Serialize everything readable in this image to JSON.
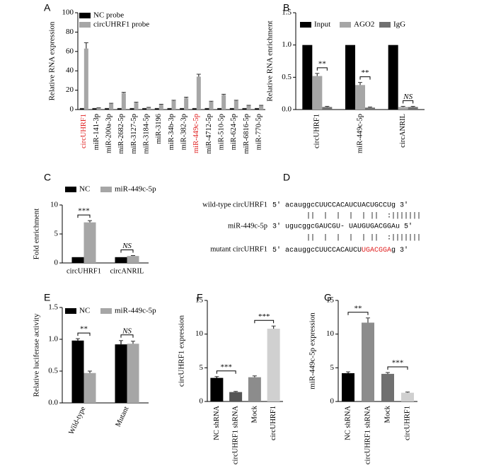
{
  "chart_data": [
    {
      "type": "bar",
      "panel": "A",
      "y_label": "Relative RNA expression",
      "categories": [
        "circUHRF1",
        "miR-141-3p",
        "miR-200a-3p",
        "miR-2682-5p",
        "miR-3127-5p",
        "miR-3184-5p",
        "miR-3196",
        "miR-34b-3p",
        "miR-382-3p",
        "miR-449c-5p",
        "miR-4712-5p",
        "miR-510-5p",
        "miR-624-5p",
        "miR-6816-5p",
        "miR-770-5p"
      ],
      "category_colors": [
        "#e02020",
        "#000000",
        "#000000",
        "#000000",
        "#000000",
        "#000000",
        "#000000",
        "#000000",
        "#000000",
        "#e02020",
        "#000000",
        "#000000",
        "#000000",
        "#000000",
        "#000000"
      ],
      "series": [
        {
          "name": "NC probe",
          "color": "#000000",
          "values": [
            1,
            1,
            1,
            1,
            1,
            1,
            1,
            1,
            1,
            1,
            1,
            1,
            1,
            1,
            1
          ],
          "errors": [
            0.2,
            0.2,
            0.2,
            0.2,
            0.2,
            0.2,
            0.2,
            0.2,
            0.2,
            0.2,
            0.2,
            0.2,
            0.2,
            0.2,
            0.2
          ]
        },
        {
          "name": "circUHRF1 probe",
          "color": "#a6a6a6",
          "values": [
            63,
            1.5,
            6,
            17,
            7,
            2,
            5,
            9,
            12,
            34,
            8,
            15,
            9,
            4,
            4
          ],
          "errors": [
            6,
            0.3,
            0.5,
            0.8,
            0.6,
            0.3,
            0.5,
            0.6,
            0.8,
            2.5,
            0.6,
            0.8,
            0.6,
            0.4,
            0.4
          ]
        }
      ],
      "ylim": [
        0,
        100
      ],
      "yticks": [
        0,
        20,
        40,
        60,
        80,
        100
      ]
    },
    {
      "type": "bar",
      "panel": "B",
      "y_label": "Relative RNA enrichment",
      "categories": [
        "circUHRF1",
        "miR-449c-5p",
        "circANRIL"
      ],
      "series": [
        {
          "name": "Input",
          "color": "#000000",
          "values": [
            1,
            1,
            1
          ],
          "errors": [
            0,
            0,
            0
          ]
        },
        {
          "name": "AGO2",
          "color": "#a6a6a6",
          "values": [
            0.52,
            0.38,
            0.04
          ],
          "errors": [
            0.04,
            0.04,
            0.01
          ]
        },
        {
          "name": "IgG",
          "color": "#707070",
          "values": [
            0.04,
            0.03,
            0.04
          ],
          "errors": [
            0.01,
            0.01,
            0.01
          ]
        }
      ],
      "significance": [
        "**",
        "**",
        "NS"
      ],
      "ylim": [
        0,
        1.5
      ],
      "yticks": [
        {
          "value": 0,
          "label": "0.0"
        },
        0.5,
        {
          "value": 1,
          "label": "1.0"
        },
        1.5
      ]
    },
    {
      "type": "bar",
      "panel": "C",
      "y_label": "Fold enrichment",
      "categories": [
        "circUHRF1",
        "circANRIL"
      ],
      "series": [
        {
          "name": "NC",
          "color": "#000000",
          "values": [
            1,
            1
          ],
          "errors": [
            0,
            0
          ]
        },
        {
          "name": "miR-449c-5p",
          "color": "#a6a6a6",
          "values": [
            7.0,
            1.2
          ],
          "errors": [
            0.3,
            0.08
          ]
        }
      ],
      "significance": [
        "***",
        "NS"
      ],
      "ylim": [
        0,
        10
      ],
      "yticks": [
        0,
        5,
        10
      ]
    },
    {
      "type": "bar",
      "panel": "E",
      "y_label": "Relative luciferase activity",
      "categories": [
        "Wild-type",
        "Mutant"
      ],
      "series": [
        {
          "name": "NC",
          "color": "#000000",
          "values": [
            0.98,
            0.92
          ],
          "errors": [
            0.03,
            0.06
          ]
        },
        {
          "name": "miR-449c-5p",
          "color": "#a6a6a6",
          "values": [
            0.47,
            0.93
          ],
          "errors": [
            0.03,
            0.04
          ]
        }
      ],
      "significance": [
        "**",
        "NS"
      ],
      "ylim": [
        0,
        1.5
      ],
      "yticks": [
        {
          "value": 0,
          "label": "0.0"
        },
        0.5,
        {
          "value": 1,
          "label": "1.0"
        },
        1.5
      ]
    },
    {
      "type": "bar",
      "panel": "F",
      "y_label": "circUHRF1  expression",
      "categories": [
        "NC shRNA",
        "circUHRF1 shRNA",
        "Mock",
        "circUHRF1"
      ],
      "values": [
        3.5,
        1.4,
        3.6,
        10.8
      ],
      "errors": [
        0.2,
        0.1,
        0.2,
        0.4
      ],
      "colors": [
        "#000000",
        "#555555",
        "#8c8c8c",
        "#d0d0d0"
      ],
      "significance": [
        "***",
        "***"
      ],
      "ylim": [
        0,
        15
      ],
      "yticks": [
        0,
        5,
        10,
        15
      ]
    },
    {
      "type": "bar",
      "panel": "G",
      "y_label": "miR-449c-5p expression",
      "categories": [
        "NC shRNA",
        "circUHRF1 shRNA",
        "Mock",
        "circUHRF1"
      ],
      "values": [
        4.2,
        11.7,
        4.1,
        1.3
      ],
      "errors": [
        0.2,
        0.7,
        0.2,
        0.1
      ],
      "colors": [
        "#000000",
        "#8c8c8c",
        "#707070",
        "#d0d0d0"
      ],
      "significance": [
        "**",
        "***"
      ],
      "ylim": [
        0,
        15
      ],
      "yticks": [
        0,
        5,
        10,
        15
      ]
    }
  ],
  "panel_d": {
    "panel": "D",
    "rows": [
      {
        "label": "wild-type circUHRF1",
        "sequence": "5' acauggcCUUCCACAUCUACUGCCUg 3'"
      },
      {
        "label": "",
        "sequence": "        ||  |  |  |  | ||  :|||||||"
      },
      {
        "label": "miR-449c-5p",
        "sequence": "3' ugucggcGAUCGU- UAUGUGACGGAu 5'"
      },
      {
        "label": "",
        "sequence": "        ||  |  |  |  | ||  :|||||||"
      },
      {
        "label": "mutant circUHRF1",
        "parts": [
          {
            "text": "5' acauggcCUUCCACAUCU",
            "color": "#000000"
          },
          {
            "text": "UGACGGA",
            "color": "#e02020"
          },
          {
            "text": "g 3'",
            "color": "#000000"
          }
        ]
      }
    ]
  }
}
